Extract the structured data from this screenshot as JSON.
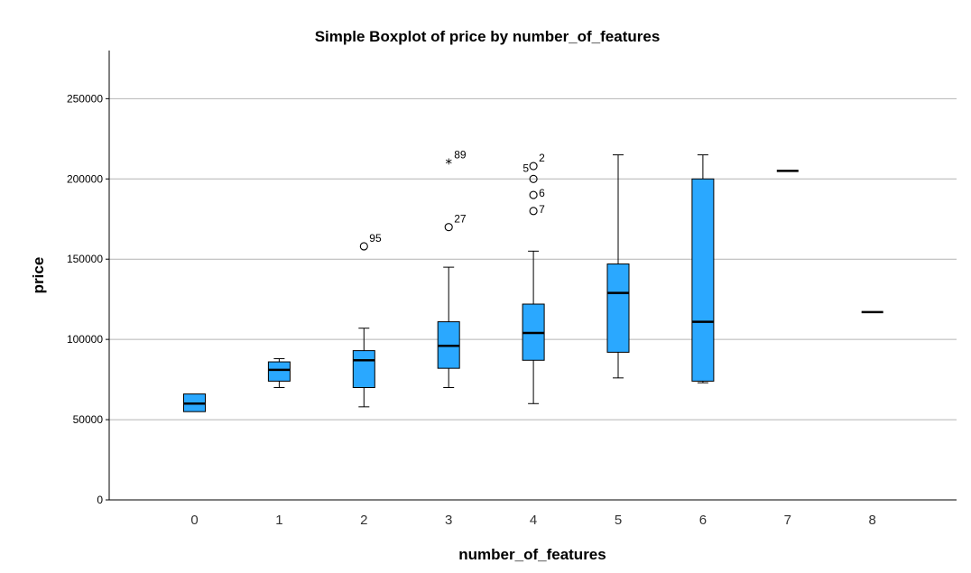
{
  "chart_data": {
    "type": "boxplot",
    "title": "Simple Boxplot of price by number_of_features",
    "xlabel": "number_of_features",
    "ylabel": "price",
    "ylim": [
      0,
      280000
    ],
    "yticks": [
      0,
      50000,
      100000,
      150000,
      200000,
      250000
    ],
    "ytick_labels": [
      "0",
      "50000",
      "100000",
      "150000",
      "200000",
      "250000"
    ],
    "grid": "horizontal",
    "colors": {
      "box_fill": "#2aa8ff",
      "stroke": "#000000",
      "grid": "#b4b4b4"
    },
    "categories": [
      "0",
      "1",
      "2",
      "3",
      "4",
      "5",
      "6",
      "7",
      "8"
    ],
    "boxes": [
      {
        "category": "0",
        "min": 55000,
        "q1": 55000,
        "median": 60000,
        "q3": 66000,
        "max": 66000
      },
      {
        "category": "1",
        "min": 70000,
        "q1": 74000,
        "median": 81000,
        "q3": 86000,
        "max": 88000
      },
      {
        "category": "2",
        "min": 58000,
        "q1": 70000,
        "median": 87000,
        "q3": 93000,
        "max": 107000
      },
      {
        "category": "3",
        "min": 70000,
        "q1": 82000,
        "median": 96000,
        "q3": 111000,
        "max": 145000
      },
      {
        "category": "4",
        "min": 60000,
        "q1": 87000,
        "median": 104000,
        "q3": 122000,
        "max": 155000
      },
      {
        "category": "5",
        "min": 76000,
        "q1": 92000,
        "median": 129000,
        "q3": 147000,
        "max": 215000
      },
      {
        "category": "6",
        "min": 73000,
        "q1": 74000,
        "median": 111000,
        "q3": 200000,
        "max": 215000
      },
      {
        "category": "7",
        "min": 205000,
        "q1": 205000,
        "median": 205000,
        "q3": 205000,
        "max": 205000
      },
      {
        "category": "8",
        "min": 117000,
        "q1": 117000,
        "median": 117000,
        "q3": 117000,
        "max": 117000
      }
    ],
    "outliers": [
      {
        "category": "2",
        "value": 158000,
        "label": "95",
        "marker": "circle"
      },
      {
        "category": "3",
        "value": 170000,
        "label": "27",
        "marker": "circle"
      },
      {
        "category": "3",
        "value": 210000,
        "label": "89",
        "marker": "star"
      },
      {
        "category": "4",
        "value": 208000,
        "label": "2",
        "marker": "circle"
      },
      {
        "category": "4",
        "value": 200000,
        "label": "5",
        "marker": "circle"
      },
      {
        "category": "4",
        "value": 190000,
        "label": "6",
        "marker": "circle"
      },
      {
        "category": "4",
        "value": 180000,
        "label": "7",
        "marker": "circle"
      }
    ]
  }
}
